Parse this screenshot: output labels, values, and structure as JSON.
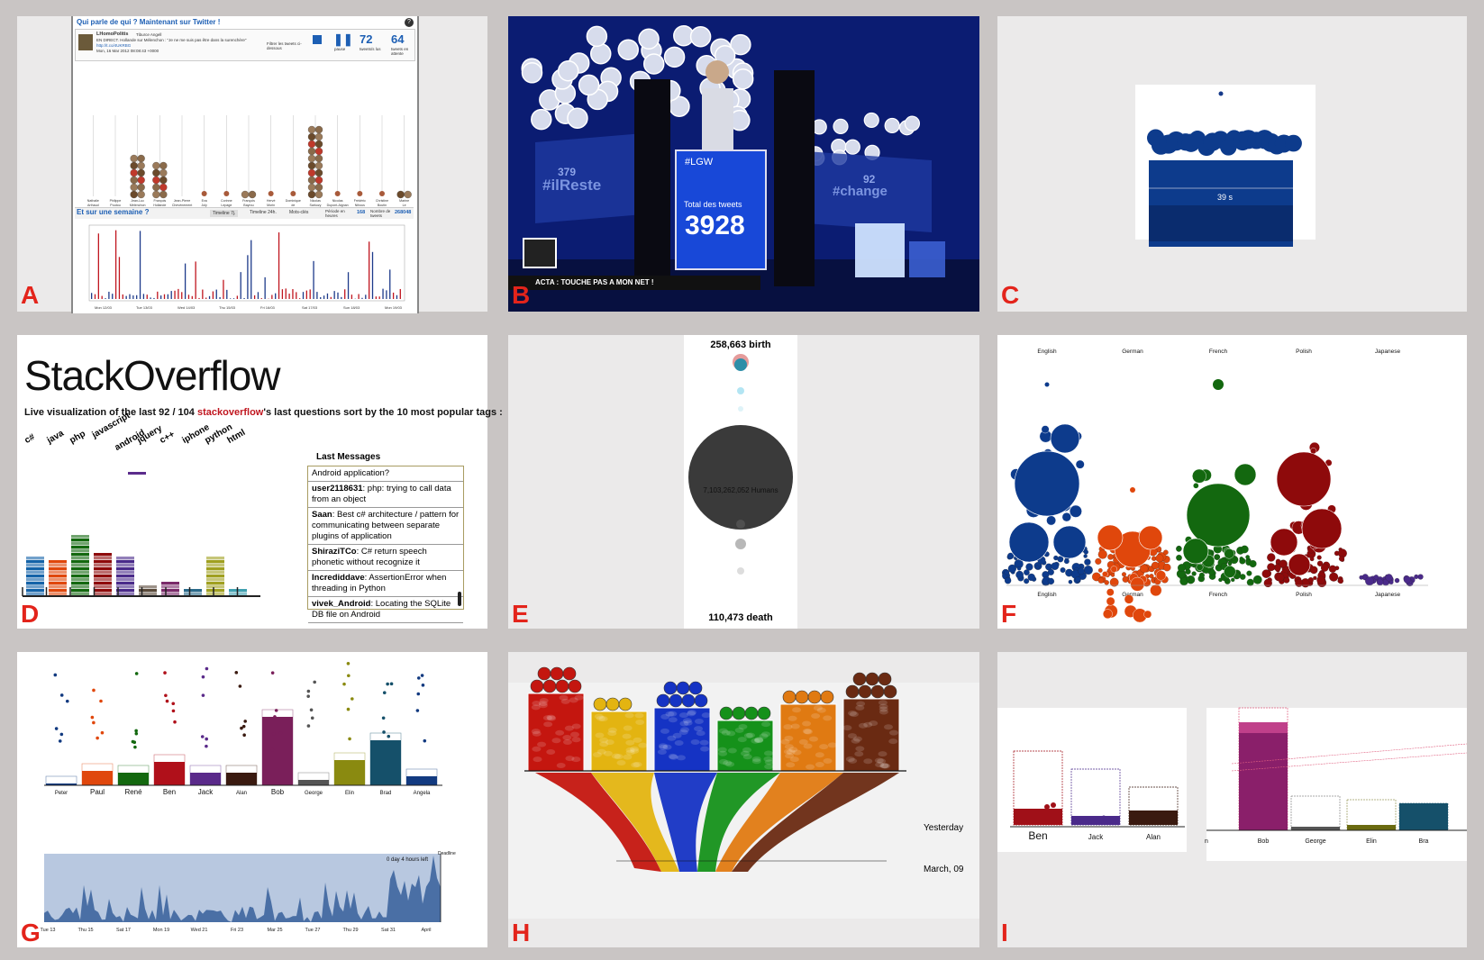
{
  "panel_labels": [
    "A",
    "B",
    "C",
    "D",
    "E",
    "F",
    "G",
    "H",
    "I"
  ],
  "A": {
    "header_title": "Qui parle de qui ? Maintenant sur Twitter !",
    "help": "?",
    "tweet_user": "LHomoPolitis",
    "tweet_line1": "Tiburce Angell",
    "tweet_line2": "EN DIRECT. Hollande sur Mélenchon : \"Je ne me suis pas être dans la surenchère\"",
    "tweet_link": "http://t.co/4UKRBG",
    "tweet_date": "Mon, 16 Mar 2012 08:08:43 +0000",
    "filter_text": "Filtrer les tweets ci-dessous",
    "pause_label": "pause",
    "count1": "72",
    "count1_label": "tweets/s lus",
    "count2": "64",
    "count2_label": "tweets en attente",
    "candidates": [
      "Nathalie Arthaud",
      "Philippe Poutou",
      "Jean-Luc Mélenchon",
      "François Hollande",
      "Jean-Pierre Chevènement",
      "Eva Joly",
      "Corinne Lepage",
      "François Bayrou",
      "Hervé Morin",
      "Dominique de Villepin",
      "Nicolas Sarkozy",
      "Nicolas Dupont-Aignan",
      "Frédéric Nihous",
      "Christine Boutin",
      "Marine Le Pen"
    ],
    "week_title": "Et sur une semaine ?",
    "tabs": [
      "Timeline 7j.",
      "Timeline 24h.",
      "Mots-clés"
    ],
    "period_label": "Période en heures",
    "period_value": "168",
    "tweet_count_label": "Nombre de tweets",
    "tweet_count_value": "268048",
    "x_ticks": [
      "Mon 12/03",
      "Tue 13/03",
      "Wed 14/03",
      "Thu 15/03",
      "Fri 16/03",
      "Sat 17/03",
      "Sun 18/03",
      "Mon 19/03"
    ]
  },
  "B": {
    "count_left": "379",
    "tag_left": "#ilReste",
    "count_right": "92",
    "tag_right": "#change",
    "hashtag": "#LGW",
    "total_label": "Total des tweets",
    "total_value": "3928",
    "ticker": "ACTA : TOUCHE PAS A MON NET !"
  },
  "C": {
    "timer": "39 s"
  },
  "D": {
    "title": "StackOverflow",
    "subtitle_pre": "Live visualization of the last ",
    "subtitle_count": "92 / 104",
    "subtitle_link": "stackoverflow",
    "subtitle_post": "'s last questions sort by the 10 most popular tags :",
    "tags": [
      "c#",
      "java",
      "php",
      "javascript",
      "android",
      "jquery",
      "c++",
      "iphone",
      "python",
      "html"
    ],
    "last_messages_title": "Last Messages",
    "messages": [
      {
        "user": "",
        "text": "Android application?"
      },
      {
        "user": "user2118631",
        "text": ": php: trying to call data from an object"
      },
      {
        "user": "Saan",
        "text": ": Best c# architecture / pattern for communicating between separate plugins of application"
      },
      {
        "user": "ShiraziTCo",
        "text": ": C# return speech phonetic without recognize it"
      },
      {
        "user": "Incrediddave",
        "text": ": AssertionError when threading in Python"
      },
      {
        "user": "vivek_Android",
        "text": ": Locating the SQLite DB file on Android"
      }
    ]
  },
  "E": {
    "birth_label": "258,663 birth",
    "humans_label": "7,103,262,052 Humans",
    "death_label": "110,473 death"
  },
  "F": {
    "languages": [
      "English",
      "German",
      "French",
      "Polish",
      "Japanese"
    ],
    "colors": [
      "#0d3b8c",
      "#e0470c",
      "#13680f",
      "#8e0a0b",
      "#4a2a8a"
    ]
  },
  "G": {
    "people": [
      "Peter",
      "Paul",
      "René",
      "Ben",
      "Jack",
      "Alan",
      "Bob",
      "George",
      "Elin",
      "Brad",
      "Angela"
    ],
    "deadline_text": "0 day 4 hours left",
    "deadline_label": "Deadline",
    "x_ticks": [
      "Tue 13",
      "Thu 15",
      "Sat 17",
      "Mon 19",
      "Wed 21",
      "Fri 23",
      "Mar 25",
      "Tue 27",
      "Thu 29",
      "Sat 31",
      "April"
    ]
  },
  "H": {
    "label_top": "Yesterday",
    "label_bottom": "March, 09",
    "jar_colors": [
      "#c4160f",
      "#e3b411",
      "#1533c4",
      "#15911a",
      "#e07a12",
      "#6a2a12"
    ]
  },
  "I": {
    "left_people": [
      "Ben",
      "Jack",
      "Alan"
    ],
    "right_people": [
      "n",
      "Bob",
      "George",
      "Elin",
      "Bra"
    ]
  }
}
